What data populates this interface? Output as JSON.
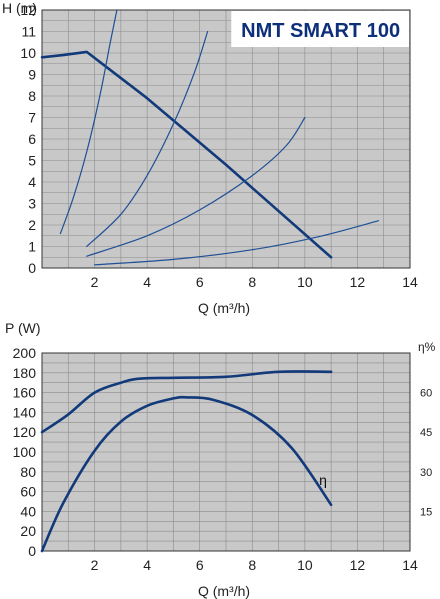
{
  "chart_data": [
    {
      "type": "line",
      "title": "NMT SMART 100",
      "ylabel": "H (m)",
      "xlabel": "Q (m³/h)",
      "xlim": [
        0,
        14
      ],
      "ylim": [
        0,
        12
      ],
      "xticks": [
        2,
        4,
        6,
        8,
        10,
        12,
        14
      ],
      "yticks": [
        0,
        1,
        2,
        3,
        4,
        5,
        6,
        7,
        8,
        9,
        10,
        11,
        12
      ],
      "grid": true,
      "series": [
        {
          "role": "max-curve",
          "x": [
            0,
            0.8,
            1.7,
            4.0,
            7.0,
            11.0
          ],
          "y": [
            9.8,
            9.9,
            10.05,
            7.9,
            4.8,
            0.5
          ]
        },
        {
          "role": "system-curve",
          "x": [
            0.7,
            1.2,
            1.7,
            2.2,
            2.6,
            2.85
          ],
          "y": [
            1.6,
            3.3,
            5.4,
            8.0,
            10.5,
            12.0
          ]
        },
        {
          "role": "system-curve",
          "x": [
            1.7,
            3.0,
            4.0,
            5.0,
            5.8,
            6.3
          ],
          "y": [
            1.0,
            2.5,
            4.3,
            6.7,
            9.1,
            11.0
          ]
        },
        {
          "role": "system-curve",
          "x": [
            1.7,
            4.0,
            6.0,
            8.0,
            9.3,
            10.0
          ],
          "y": [
            0.55,
            1.5,
            2.7,
            4.3,
            5.7,
            7.0
          ]
        },
        {
          "role": "system-curve",
          "x": [
            2.0,
            5.0,
            8.0,
            10.5,
            12.8
          ],
          "y": [
            0.15,
            0.4,
            0.85,
            1.45,
            2.2
          ]
        }
      ]
    },
    {
      "type": "line",
      "ylabel": "P (W)",
      "xlabel": "Q (m³/h)",
      "y2label": "η%",
      "xlim": [
        0,
        14
      ],
      "ylim": [
        0,
        200
      ],
      "xticks": [
        2,
        4,
        6,
        8,
        10,
        12,
        14
      ],
      "yticks": [
        0,
        20,
        40,
        60,
        80,
        100,
        120,
        140,
        160,
        180,
        200
      ],
      "y2lim": [
        0,
        75
      ],
      "y2ticks": [
        15,
        30,
        45,
        60
      ],
      "grid": true,
      "series": [
        {
          "role": "power",
          "x": [
            0,
            1.0,
            2.0,
            3.0,
            3.7,
            5.0,
            7.0,
            9.0,
            11.0
          ],
          "y": [
            120,
            138,
            160,
            170,
            174,
            175,
            176,
            181,
            181
          ]
        },
        {
          "role": "efficiency",
          "name": "η",
          "x": [
            0,
            0.8,
            2.0,
            3.0,
            4.0,
            5.0,
            5.5,
            6.5,
            8.0,
            9.5,
            11.0
          ],
          "y2": [
            0,
            18,
            38,
            49,
            55,
            57.8,
            58.2,
            57.3,
            51.5,
            39,
            17.5
          ]
        }
      ]
    }
  ]
}
